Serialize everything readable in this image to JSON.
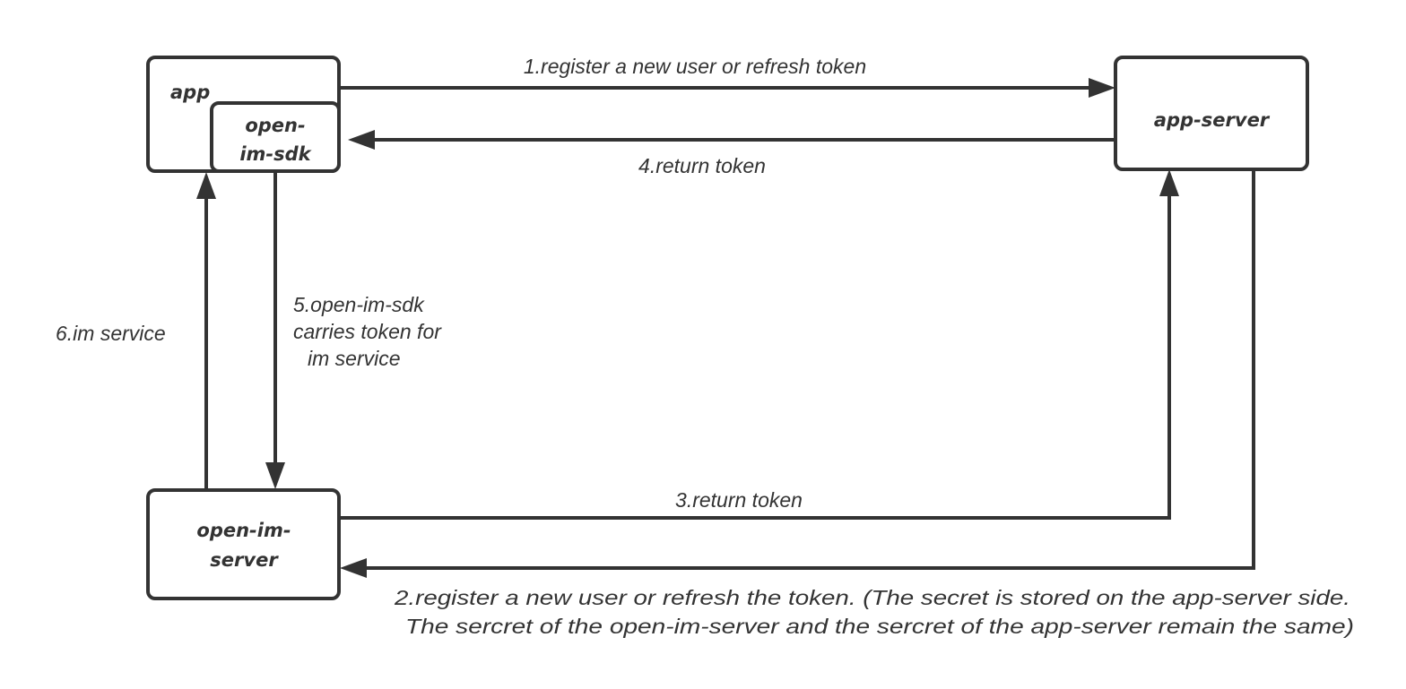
{
  "nodes": {
    "app": "app",
    "sdk_line1": "open-",
    "sdk_line2": "im-sdk",
    "app_server": "app-server",
    "im_server_line1": "open-im-",
    "im_server_line2": "server"
  },
  "edges": {
    "step1": "1.register a new user or refresh token",
    "step2_line1": "2.register a new user or refresh the token. (The secret is stored on the app-server side.",
    "step2_line2": "The sercret of the open-im-server and the sercret of the app-server remain the same)",
    "step3": "3.return token",
    "step4": "4.return token",
    "step5_line1": "5.open-im-sdk",
    "step5_line2": "carries token for",
    "step5_line3": "im service",
    "step6": "6.im service"
  },
  "colors": {
    "stroke": "#333333",
    "background": "#ffffff"
  }
}
